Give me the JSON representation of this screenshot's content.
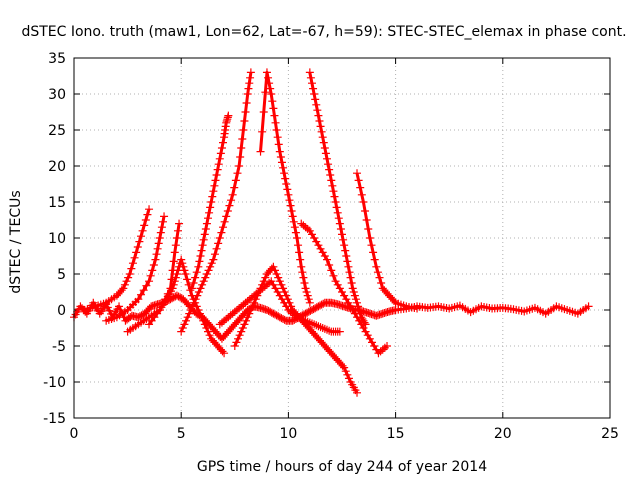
{
  "chart_data": {
    "type": "scatter",
    "title": "dSTEC Iono. truth (maw1, Lon=62, Lat=-67, h=59): STEC-STEC_elemax in phase cont.",
    "xlabel": "GPS time / hours of day 244 of year 2014",
    "ylabel": "dSTEC  / TECUs",
    "xlim": [
      0,
      25
    ],
    "ylim": [
      -15,
      35
    ],
    "xticks": [
      0,
      5,
      10,
      15,
      20,
      25
    ],
    "yticks": [
      -15,
      -10,
      -5,
      0,
      5,
      10,
      15,
      20,
      25,
      30,
      35
    ],
    "grid": true,
    "marker": "+",
    "color": "#ff0000",
    "series": [
      {
        "x": [
          0.0,
          0.3,
          0.6,
          0.9,
          1.2,
          1.5,
          1.8,
          2.1,
          2.4,
          2.7,
          3.0,
          3.3,
          3.6,
          3.9,
          4.2,
          4.5,
          4.8,
          5.1,
          5.4,
          5.7,
          6.0,
          6.3,
          6.6,
          6.9,
          7.2,
          7.5,
          7.8,
          8.1,
          8.4,
          8.7,
          9.0,
          9.3,
          9.6,
          9.9,
          10.2,
          10.5,
          10.8,
          11.1,
          11.4,
          11.7,
          12.0,
          12.3,
          12.6,
          12.9,
          13.2,
          13.5,
          13.8,
          14.1,
          14.4,
          14.7,
          15.0,
          15.5,
          16.0,
          16.5,
          17.0,
          17.5,
          18.0,
          18.5,
          19.0,
          19.5,
          20.0,
          20.5,
          21.0,
          21.5,
          22.0,
          22.5,
          23.0,
          23.5,
          24.0
        ],
        "y": [
          -1,
          0.5,
          -0.5,
          1,
          -0.5,
          0.8,
          -1,
          0.5,
          -1.5,
          -0.8,
          -1,
          -0.5,
          0.5,
          0.8,
          1,
          1.5,
          2,
          1.5,
          0.5,
          -0.5,
          -1,
          -2,
          -3,
          -4,
          -3,
          -2,
          -1,
          0,
          0.5,
          0.3,
          0,
          -0.5,
          -1,
          -1.5,
          -1.5,
          -1,
          -0.5,
          0,
          0.5,
          1,
          1,
          0.8,
          0.5,
          0.2,
          0,
          -0.2,
          -0.5,
          -0.8,
          -0.5,
          -0.2,
          0,
          0.2,
          0.5,
          0.3,
          0.5,
          0.2,
          0.6,
          -0.3,
          0.5,
          0.2,
          0.3,
          0.1,
          -0.2,
          0.3,
          -0.5,
          0.5,
          0,
          -0.5,
          0.5
        ]
      },
      {
        "x": [
          0.5,
          1.0,
          1.5,
          2.0,
          2.3,
          2.6,
          2.9,
          3.2,
          3.5
        ],
        "y": [
          0,
          0.5,
          1,
          2,
          3,
          5,
          8,
          11,
          14
        ]
      },
      {
        "x": [
          1.5,
          2.0,
          2.5,
          3.0,
          3.5,
          3.8,
          4.0,
          4.2
        ],
        "y": [
          -1.5,
          -1,
          0,
          1.5,
          4,
          7,
          10,
          13
        ]
      },
      {
        "x": [
          2.5,
          3.0,
          3.5,
          4.0,
          4.3,
          4.6,
          4.8,
          5.0,
          5.2,
          5.5,
          5.8,
          6.1,
          6.4,
          6.7,
          7.0
        ],
        "y": [
          -3,
          -2,
          -1,
          0,
          1.5,
          3,
          5,
          7,
          5,
          2,
          0,
          -2,
          -4,
          -5,
          -6
        ]
      },
      {
        "x": [
          3.5,
          4.0,
          4.5,
          4.7,
          4.9
        ],
        "y": [
          -2,
          0,
          3,
          8,
          12
        ]
      },
      {
        "x": [
          5.5,
          5.8,
          6.0,
          6.2,
          6.4,
          6.6,
          6.8,
          7.0,
          7.1,
          7.2
        ],
        "y": [
          3,
          6,
          9,
          12,
          15,
          18,
          21,
          24,
          26,
          27
        ]
      },
      {
        "x": [
          5.0,
          5.3,
          5.6,
          5.9,
          6.2,
          6.5,
          6.8,
          7.1,
          7.4,
          7.7,
          7.9,
          8.1,
          8.25
        ],
        "y": [
          -3,
          -1,
          1,
          3,
          5,
          7,
          10,
          13,
          16,
          20,
          25,
          30,
          33
        ]
      },
      {
        "x": [
          7.5,
          7.8,
          8.1,
          8.4,
          8.7,
          9.0,
          9.3,
          9.6,
          9.9,
          10.2,
          10.5,
          10.8,
          11.1,
          11.4,
          11.7,
          12.0,
          12.3,
          12.6,
          12.9,
          13.2
        ],
        "y": [
          -5,
          -3,
          -1,
          1,
          3,
          5,
          6,
          4,
          2,
          0,
          -1,
          -2,
          -3,
          -4,
          -5,
          -6,
          -7,
          -8,
          -10,
          -11.5
        ]
      },
      {
        "x": [
          8.7,
          9.0,
          9.2,
          9.4,
          9.6,
          9.8,
          10.0,
          10.2,
          10.4,
          10.6,
          10.8,
          11.0
        ],
        "y": [
          22,
          33,
          30,
          26,
          22,
          19,
          16,
          13,
          10,
          6,
          3,
          1
        ]
      },
      {
        "x": [
          6.8,
          7.2,
          7.6,
          8.0,
          8.4,
          8.8,
          9.2,
          9.6,
          10.0,
          10.4,
          10.8,
          11.2,
          11.6,
          12.0,
          12.4
        ],
        "y": [
          -2,
          -1,
          0,
          1,
          2,
          3,
          4,
          2,
          0,
          -1,
          -1.5,
          -2,
          -2.5,
          -3,
          -3
        ]
      },
      {
        "x": [
          11.0,
          11.2,
          11.4,
          11.6,
          11.8,
          12.0,
          12.2,
          12.4,
          12.6,
          12.8,
          13.0,
          13.2,
          13.4,
          13.6
        ],
        "y": [
          33,
          30,
          27,
          24,
          21,
          18,
          15,
          12,
          9,
          6,
          3,
          1,
          -1,
          -2
        ]
      },
      {
        "x": [
          10.6,
          11.0,
          11.4,
          11.8,
          12.2,
          12.6,
          13.0,
          13.4,
          13.8,
          14.2,
          14.6
        ],
        "y": [
          12,
          11,
          9,
          7,
          4,
          2,
          0,
          -2,
          -4,
          -6,
          -5
        ]
      },
      {
        "x": [
          13.2,
          13.5,
          13.8,
          14.1,
          14.4,
          14.7,
          15.0,
          15.5,
          16.0
        ],
        "y": [
          19,
          15,
          10,
          6,
          3,
          2,
          1,
          0.5,
          0.2
        ]
      }
    ]
  }
}
